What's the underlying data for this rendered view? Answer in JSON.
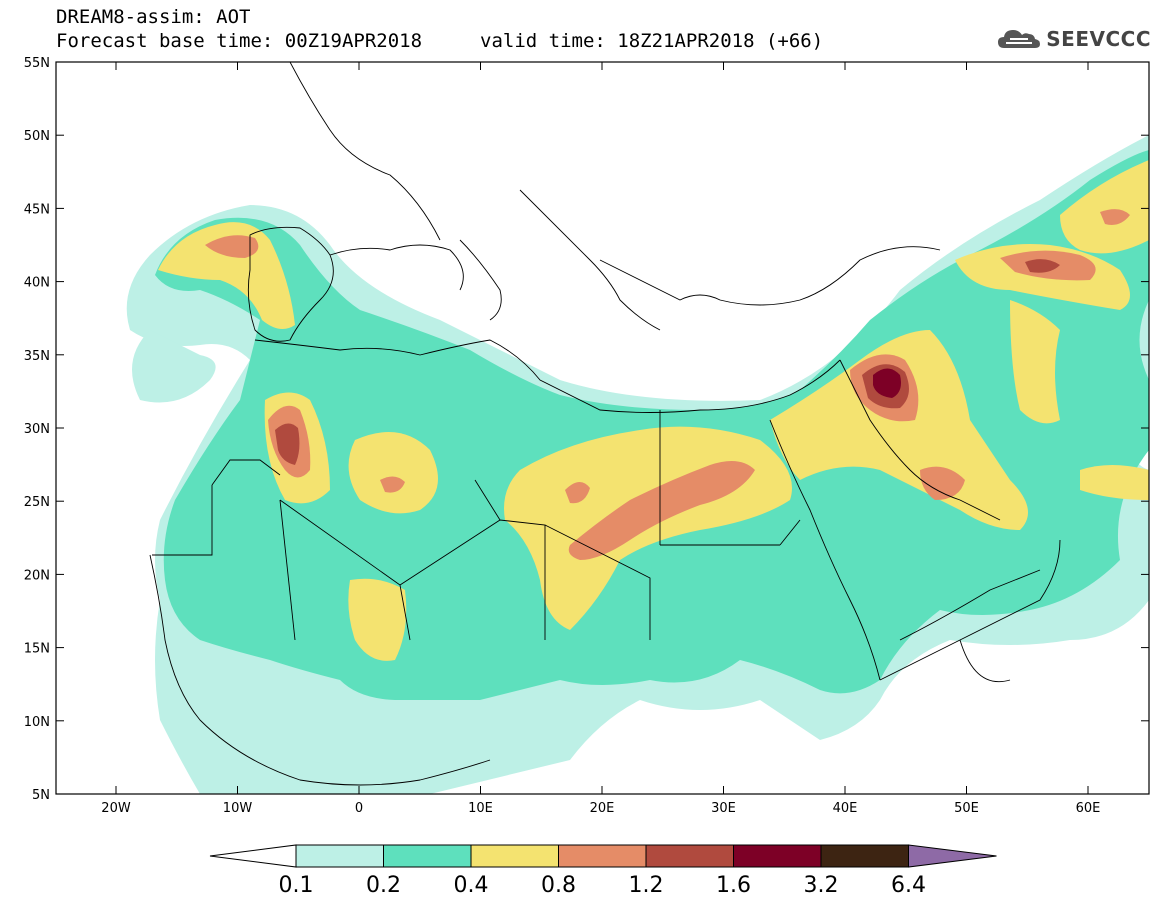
{
  "header": {
    "model": "DREAM8-assim: AOT",
    "base": "Forecast base time: 00Z19APR2018",
    "valid": "valid time: 18Z21APR2018 (+66)",
    "logo": "SEEVCCC",
    "logo_icon": "cloud-icon"
  },
  "axes": {
    "lon_labels": [
      "20W",
      "10W",
      "0",
      "10E",
      "20E",
      "30E",
      "40E",
      "50E",
      "60E"
    ],
    "lat_labels": [
      "55N",
      "50N",
      "45N",
      "40N",
      "35N",
      "30N",
      "25N",
      "20N",
      "15N",
      "10N",
      "5N"
    ]
  },
  "colorbar": {
    "labels": [
      "0.1",
      "0.2",
      "0.4",
      "0.8",
      "1.2",
      "1.6",
      "3.2",
      "6.4"
    ],
    "colors": [
      "#ffffff",
      "#bdf0e6",
      "#5ee0bd",
      "#f4e370",
      "#e58c67",
      "#b04a3e",
      "#7d0026",
      "#3d2412",
      "#8e6aa6"
    ]
  },
  "colors": {
    "c1": "#bdf0e6",
    "c2": "#5ee0bd",
    "c3": "#f4e370",
    "c4": "#e58c67",
    "c5": "#b04a3e",
    "c6": "#7d0026",
    "border": "#000000"
  }
}
